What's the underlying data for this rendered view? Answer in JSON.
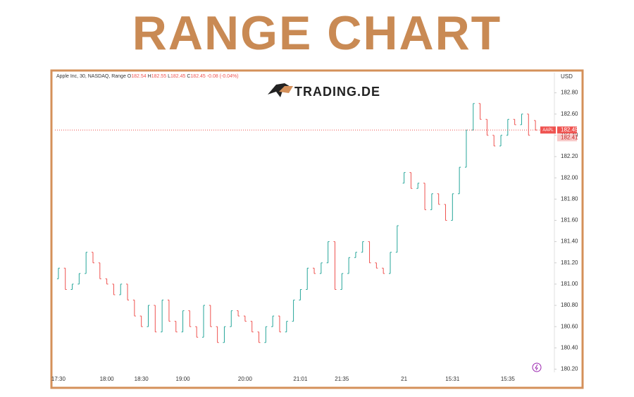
{
  "chart_data": {
    "type": "ohlc",
    "title": "RANGE CHART",
    "header": {
      "instrument": "Apple Inc, 30, NASDAQ, Range",
      "o_label": "O",
      "o_value": "182.54",
      "h_label": "H",
      "h_value": "182.55",
      "l_label": "L",
      "l_value": "182.45",
      "c_label": "C",
      "c_value": "182.45",
      "change": "-0.08 (-0.04%)"
    },
    "logo": "TRADING.DE",
    "currency": "USD",
    "up_color": "#26a69a",
    "down_color": "#ef5350",
    "grid": false,
    "categories": [
      "17:30",
      null,
      null,
      null,
      null,
      null,
      null,
      "18:00",
      null,
      null,
      null,
      null,
      "18:30",
      null,
      null,
      null,
      null,
      null,
      "19:00",
      null,
      null,
      null,
      null,
      null,
      null,
      null,
      null,
      "20:00",
      null,
      null,
      null,
      null,
      null,
      null,
      null,
      "21:01",
      null,
      null,
      null,
      null,
      null,
      "21:35",
      null,
      null,
      null,
      null,
      null,
      null,
      null,
      null,
      "21",
      null,
      null,
      null,
      null,
      null,
      null,
      "15:31",
      null,
      null,
      null,
      null,
      null,
      null,
      null,
      "15:35",
      null,
      null,
      null,
      null
    ],
    "open": [
      181.05,
      181.15,
      180.95,
      181.0,
      181.1,
      181.3,
      181.2,
      181.05,
      181.0,
      180.9,
      181.0,
      180.85,
      180.7,
      180.6,
      180.8,
      180.55,
      180.85,
      180.65,
      180.55,
      180.75,
      180.6,
      180.5,
      180.8,
      180.6,
      180.45,
      180.6,
      180.75,
      180.7,
      180.65,
      180.55,
      180.45,
      180.6,
      180.7,
      180.55,
      180.65,
      180.85,
      180.95,
      181.15,
      181.1,
      181.2,
      181.4,
      180.95,
      181.1,
      181.25,
      181.3,
      181.4,
      181.2,
      181.15,
      181.1,
      181.3,
      181.95,
      182.05,
      181.9,
      181.95,
      181.7,
      181.85,
      181.75,
      181.6,
      181.85,
      182.1,
      182.45,
      182.7,
      182.55,
      182.4,
      182.3,
      182.4,
      182.55,
      182.5,
      182.6,
      182.54
    ],
    "close": [
      181.15,
      180.95,
      181.0,
      181.1,
      181.3,
      181.2,
      181.05,
      181.0,
      180.9,
      181.0,
      180.85,
      180.7,
      180.6,
      180.8,
      180.55,
      180.85,
      180.65,
      180.55,
      180.75,
      180.6,
      180.5,
      180.8,
      180.6,
      180.45,
      180.6,
      180.75,
      180.7,
      180.65,
      180.55,
      180.45,
      180.6,
      180.7,
      180.55,
      180.65,
      180.85,
      180.95,
      181.15,
      181.1,
      181.2,
      181.4,
      180.95,
      181.1,
      181.25,
      181.3,
      181.4,
      181.2,
      181.15,
      181.1,
      181.3,
      181.55,
      182.05,
      181.9,
      181.95,
      181.7,
      181.85,
      181.75,
      181.6,
      181.85,
      182.1,
      182.45,
      182.7,
      182.55,
      182.4,
      182.3,
      182.4,
      182.55,
      182.5,
      182.6,
      182.4,
      182.45
    ],
    "ylim": [
      180.17,
      182.99
    ],
    "yticks": [
      {
        "value": 180.2,
        "label": "180.20"
      },
      {
        "value": 180.4,
        "label": "180.40"
      },
      {
        "value": 180.6,
        "label": "180.60"
      },
      {
        "value": 180.8,
        "label": "180.80"
      },
      {
        "value": 181.0,
        "label": "181.00"
      },
      {
        "value": 181.2,
        "label": "181.20"
      },
      {
        "value": 181.4,
        "label": "181.40"
      },
      {
        "value": 181.6,
        "label": "181.60"
      },
      {
        "value": 181.8,
        "label": "181.80"
      },
      {
        "value": 182.0,
        "label": "182.00"
      },
      {
        "value": 182.2,
        "label": "182.20"
      },
      {
        "value": 182.4,
        "label": "182.40"
      },
      {
        "value": 182.6,
        "label": "182.60"
      },
      {
        "value": 182.8,
        "label": "182.80"
      }
    ],
    "last_price": {
      "symbol": "AAPL",
      "value": 182.45,
      "label": "182.45"
    },
    "second_price": {
      "value": 182.41,
      "label": "182.41"
    }
  }
}
